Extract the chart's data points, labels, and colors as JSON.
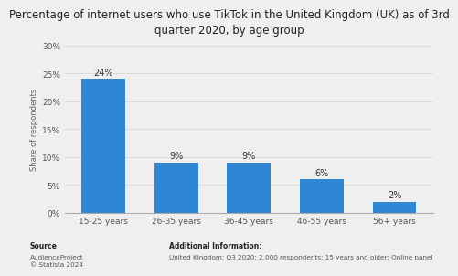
{
  "title": "Percentage of internet users who use TikTok in the United Kingdom (UK) as of 3rd\nquarter 2020, by age group",
  "categories": [
    "15-25 years",
    "26-35 years",
    "36-45 years",
    "46-55 years",
    "56+ years"
  ],
  "values": [
    24,
    9,
    9,
    6,
    2
  ],
  "bar_color": "#2f86d4",
  "ylabel": "Share of respondents",
  "ylim": [
    0,
    30
  ],
  "yticks": [
    0,
    5,
    10,
    15,
    20,
    25,
    30
  ],
  "ytick_labels": [
    "0%",
    "5%",
    "10%",
    "15%",
    "20%",
    "25%",
    "30%"
  ],
  "background_color": "#efefef",
  "plot_bg_color": "#efefef",
  "grid_color": "#d8d8d8",
  "title_fontsize": 8.5,
  "label_fontsize": 6.0,
  "tick_fontsize": 6.5,
  "bar_label_fontsize": 7.0,
  "source_label": "Source",
  "source_body": "AudienceProject\n© Statista 2024",
  "additional_label": "Additional Information:",
  "additional_body": "United Kingdom; Q3 2020; 2,000 respondents; 15 years and older; Online panel"
}
